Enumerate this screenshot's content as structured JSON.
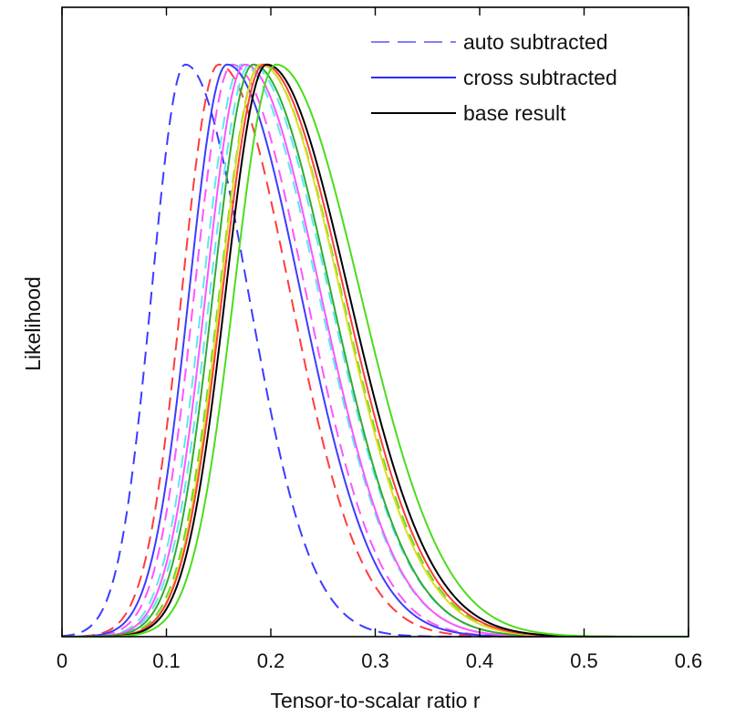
{
  "chart_data": {
    "type": "line",
    "title": "",
    "xlabel": "Tensor-to-scalar ratio r",
    "ylabel": "Likelihood",
    "xlim": [
      0,
      0.6
    ],
    "ylim": [
      0,
      1.1
    ],
    "xticks": [
      "0",
      "0.1",
      "0.2",
      "0.3",
      "0.4",
      "0.5",
      "0.6"
    ],
    "grid": false,
    "legend_position": "top-right",
    "legend": [
      {
        "name": "auto subtracted",
        "style": "dashed",
        "color": "#7f7fff"
      },
      {
        "name": "cross subtracted",
        "style": "solid",
        "color": "#2b2bff"
      },
      {
        "name": "base result",
        "style": "solid",
        "color": "#000000"
      }
    ],
    "curves": [
      {
        "style": "dashed",
        "color": "#3c3cff",
        "peak": 0.118,
        "sigma_left": 0.032,
        "sigma_right": 0.06
      },
      {
        "style": "dashed",
        "color": "#ff3c3c",
        "peak": 0.15,
        "sigma_left": 0.035,
        "sigma_right": 0.068
      },
      {
        "style": "dashed",
        "color": "#ff55ff",
        "peak": 0.163,
        "sigma_left": 0.036,
        "sigma_right": 0.07
      },
      {
        "style": "dashed",
        "color": "#5ee8ee",
        "peak": 0.172,
        "sigma_left": 0.037,
        "sigma_right": 0.073
      },
      {
        "style": "dashed",
        "color": "#5ee8ee",
        "peak": 0.18,
        "sigma_left": 0.038,
        "sigma_right": 0.075
      },
      {
        "style": "dashed",
        "color": "#66dd22",
        "peak": 0.19,
        "sigma_left": 0.039,
        "sigma_right": 0.077
      },
      {
        "style": "solid",
        "color": "#3c3cff",
        "peak": 0.158,
        "sigma_left": 0.036,
        "sigma_right": 0.07
      },
      {
        "style": "solid",
        "color": "#ff55ff",
        "peak": 0.175,
        "sigma_left": 0.037,
        "sigma_right": 0.072
      },
      {
        "style": "solid",
        "color": "#33aa33",
        "peak": 0.183,
        "sigma_left": 0.038,
        "sigma_right": 0.074
      },
      {
        "style": "solid",
        "color": "#dddd22",
        "peak": 0.19,
        "sigma_left": 0.038,
        "sigma_right": 0.076
      },
      {
        "style": "solid",
        "color": "#ff3c3c",
        "peak": 0.193,
        "sigma_left": 0.039,
        "sigma_right": 0.077
      },
      {
        "style": "solid",
        "color": "#000000",
        "peak": 0.196,
        "sigma_left": 0.039,
        "sigma_right": 0.078
      },
      {
        "style": "solid",
        "color": "#4cdc1c",
        "peak": 0.205,
        "sigma_left": 0.04,
        "sigma_right": 0.08
      }
    ]
  }
}
